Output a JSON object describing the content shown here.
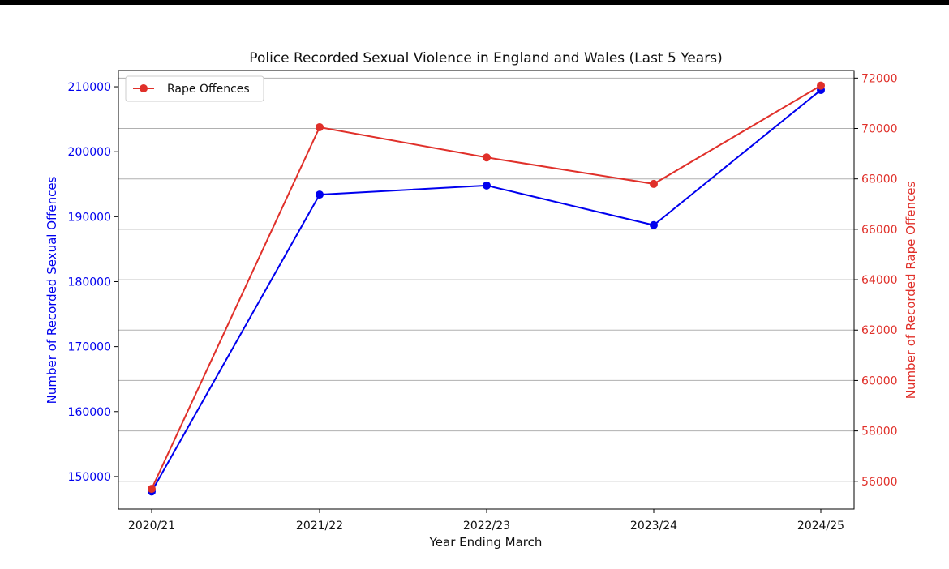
{
  "chart_data": {
    "type": "line",
    "title": "Police Recorded Sexual Violence in England and Wales (Last 5 Years)",
    "xlabel": "Year Ending March",
    "categories": [
      "2020/21",
      "2021/22",
      "2022/23",
      "2023/24",
      "2024/25"
    ],
    "y_left": {
      "label": "Number of Recorded Sexual Offences",
      "color": "#0000ee",
      "ylim": [
        145000,
        212500
      ],
      "ticks": [
        150000,
        160000,
        170000,
        180000,
        190000,
        200000,
        210000
      ],
      "tick_labels": [
        "150000",
        "160000",
        "170000",
        "180000",
        "190000",
        "200000",
        "210000"
      ]
    },
    "y_right": {
      "label": "Number of Recorded Rape Offences",
      "color": "#e0302a",
      "ylim": [
        54900,
        72300
      ],
      "ticks": [
        56000,
        58000,
        60000,
        62000,
        64000,
        66000,
        68000,
        70000,
        72000
      ],
      "tick_labels": [
        "56000",
        "58000",
        "60000",
        "62000",
        "64000",
        "66000",
        "68000",
        "70000",
        "72000"
      ]
    },
    "series": [
      {
        "axis": "left",
        "color": "#0000ee",
        "values": [
          147700,
          193400,
          194800,
          188700,
          209500
        ]
      },
      {
        "name": "Rape Offences",
        "axis": "right",
        "color": "#e0302a",
        "values": [
          55700,
          70050,
          68850,
          67800,
          71700
        ]
      }
    ],
    "grid": "horizontal (right axis ticks)",
    "legend": "top-left"
  }
}
